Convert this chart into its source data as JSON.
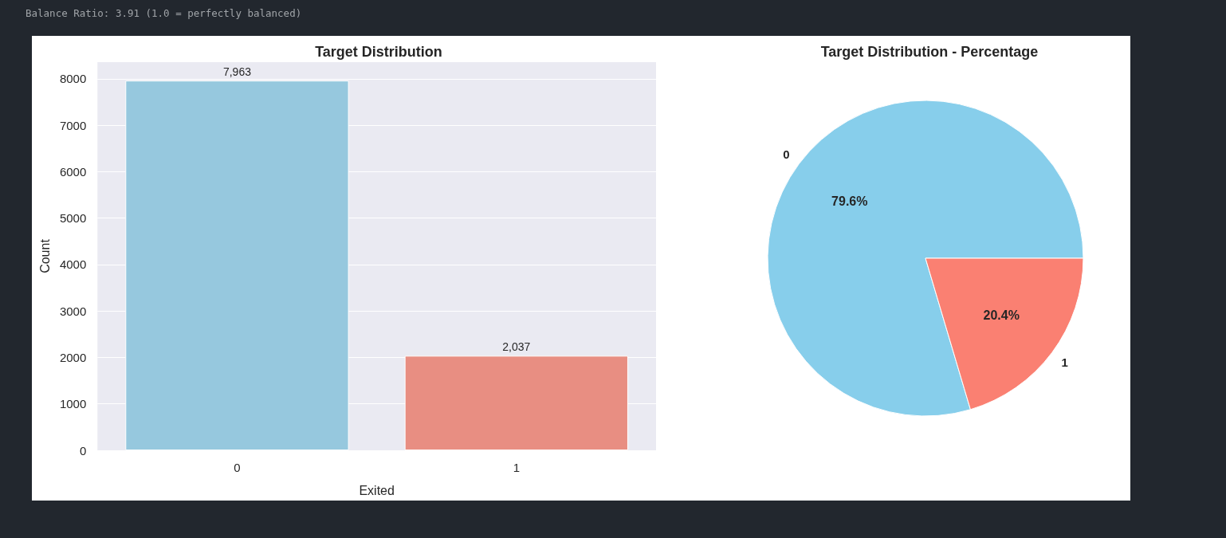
{
  "chart_data": [
    {
      "type": "bar",
      "title": "Target Distribution",
      "xlabel": "Exited",
      "ylabel": "Count",
      "categories": [
        "0",
        "1"
      ],
      "values": [
        7963,
        2037
      ],
      "colors": [
        "#96c8de",
        "#e88e82"
      ],
      "value_labels": [
        "7,963",
        "2,037"
      ],
      "ylim": [
        0,
        8360
      ],
      "yticks": [
        0,
        1000,
        2000,
        3000,
        4000,
        5000,
        6000,
        7000,
        8000
      ],
      "grid": "y",
      "annotations": [
        "Balance Ratio: 3.91 (1.0 = perfectly balanced)"
      ]
    },
    {
      "type": "pie",
      "title": "Target Distribution - Percentage",
      "categories": [
        "0",
        "1"
      ],
      "values": [
        79.6,
        20.4
      ],
      "colors": [
        "#87ceeb",
        "#fa8072"
      ],
      "value_labels": [
        "79.6%",
        "20.4%"
      ]
    }
  ]
}
